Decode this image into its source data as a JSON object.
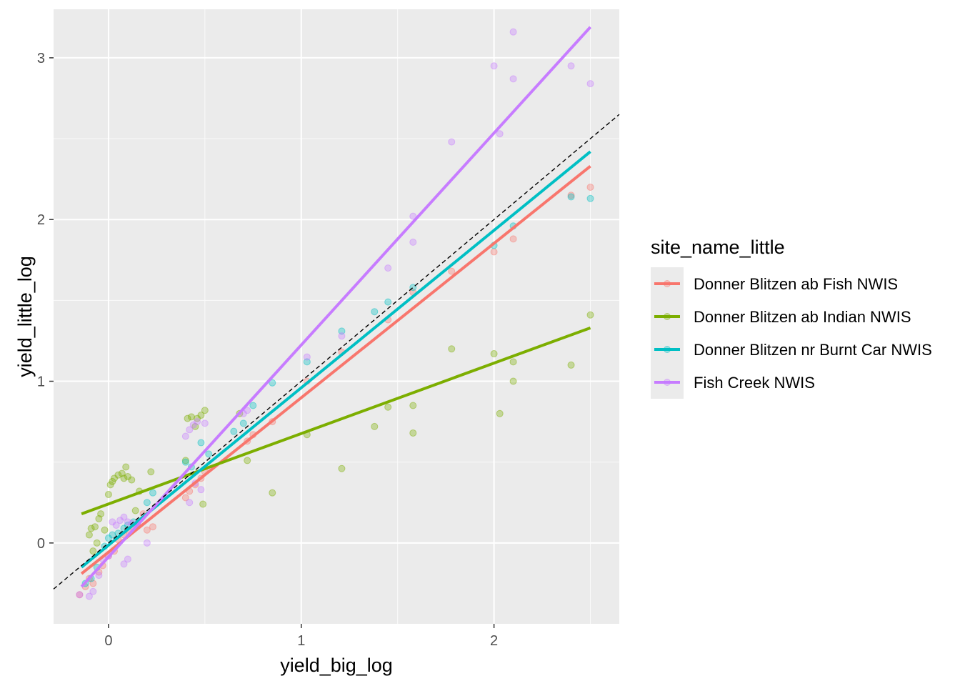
{
  "chart_data": {
    "type": "scatter",
    "xlabel": "yield_big_log",
    "ylabel": "yield_little_log",
    "xlim": [
      -0.285,
      2.65
    ],
    "ylim": [
      -0.5,
      3.3
    ],
    "x_ticks": [
      0,
      1,
      2
    ],
    "y_ticks": [
      0,
      1,
      2,
      3
    ],
    "grid": true,
    "panel_background": "#ebebeb",
    "reference_line": {
      "type": "identity",
      "slope": 1,
      "intercept": 0,
      "style": "dashed",
      "color": "#000000"
    },
    "legend": {
      "title": "site_name_little",
      "placement": "right",
      "entries": [
        {
          "label": "Donner Blitzen ab Fish NWIS",
          "color": "#F8766D"
        },
        {
          "label": "Donner Blitzen ab Indian NWIS",
          "color": "#7CAE00"
        },
        {
          "label": "Donner Blitzen nr Burnt Car NWIS",
          "color": "#00BFC4"
        },
        {
          "label": "Fish Creek NWIS",
          "color": "#C77CFF"
        }
      ]
    },
    "series": [
      {
        "name": "Donner Blitzen ab Fish NWIS",
        "color": "#F8766D",
        "fit": {
          "x": [
            -0.14,
            2.5
          ],
          "y": [
            -0.19,
            2.33
          ]
        },
        "points": [
          [
            -0.15,
            -0.32
          ],
          [
            -0.12,
            -0.27
          ],
          [
            -0.1,
            -0.22
          ],
          [
            -0.08,
            -0.25
          ],
          [
            -0.05,
            -0.18
          ],
          [
            -0.03,
            -0.14
          ],
          [
            0.0,
            -0.08
          ],
          [
            0.03,
            -0.05
          ],
          [
            0.05,
            0.02
          ],
          [
            0.08,
            0.05
          ],
          [
            0.1,
            0.08
          ],
          [
            0.13,
            0.1
          ],
          [
            0.15,
            0.12
          ],
          [
            0.18,
            0.18
          ],
          [
            0.2,
            0.08
          ],
          [
            0.23,
            0.1
          ],
          [
            0.4,
            0.28
          ],
          [
            0.42,
            0.32
          ],
          [
            0.45,
            0.36
          ],
          [
            0.48,
            0.4
          ],
          [
            0.5,
            0.44
          ],
          [
            0.72,
            0.63
          ],
          [
            0.75,
            0.67
          ],
          [
            0.85,
            0.75
          ],
          [
            1.03,
            1.0
          ],
          [
            1.21,
            1.18
          ],
          [
            1.45,
            1.38
          ],
          [
            1.58,
            1.55
          ],
          [
            1.78,
            1.68
          ],
          [
            2.0,
            1.8
          ],
          [
            2.1,
            1.88
          ],
          [
            2.4,
            2.15
          ],
          [
            2.5,
            2.2
          ]
        ]
      },
      {
        "name": "Donner Blitzen ab Indian NWIS",
        "color": "#7CAE00",
        "fit": {
          "x": [
            -0.14,
            2.5
          ],
          "y": [
            0.18,
            1.33
          ]
        },
        "points": [
          [
            -0.1,
            0.05
          ],
          [
            -0.09,
            0.09
          ],
          [
            -0.07,
            0.1
          ],
          [
            -0.05,
            0.15
          ],
          [
            -0.04,
            0.18
          ],
          [
            -0.08,
            -0.05
          ],
          [
            -0.06,
            0.0
          ],
          [
            -0.02,
            0.08
          ],
          [
            0.0,
            0.3
          ],
          [
            0.01,
            0.36
          ],
          [
            0.02,
            0.38
          ],
          [
            0.03,
            0.4
          ],
          [
            0.05,
            0.42
          ],
          [
            0.07,
            0.43
          ],
          [
            0.08,
            0.4
          ],
          [
            0.09,
            0.47
          ],
          [
            0.1,
            0.41
          ],
          [
            0.12,
            0.39
          ],
          [
            0.14,
            0.2
          ],
          [
            0.16,
            0.32
          ],
          [
            0.22,
            0.44
          ],
          [
            0.4,
            0.51
          ],
          [
            0.41,
            0.77
          ],
          [
            0.43,
            0.78
          ],
          [
            0.45,
            0.72
          ],
          [
            0.46,
            0.77
          ],
          [
            0.48,
            0.79
          ],
          [
            0.5,
            0.82
          ],
          [
            0.49,
            0.24
          ],
          [
            0.68,
            0.8
          ],
          [
            0.72,
            0.51
          ],
          [
            0.85,
            0.31
          ],
          [
            1.03,
            0.67
          ],
          [
            1.21,
            0.46
          ],
          [
            1.38,
            0.72
          ],
          [
            1.45,
            0.84
          ],
          [
            1.58,
            0.68
          ],
          [
            1.58,
            0.85
          ],
          [
            1.78,
            1.2
          ],
          [
            2.0,
            1.17
          ],
          [
            2.03,
            0.8
          ],
          [
            2.1,
            1.0
          ],
          [
            2.1,
            1.12
          ],
          [
            2.4,
            1.1
          ],
          [
            2.5,
            1.41
          ]
        ]
      },
      {
        "name": "Donner Blitzen nr Burnt Car NWIS",
        "color": "#00BFC4",
        "fit": {
          "x": [
            -0.14,
            2.5
          ],
          "y": [
            -0.15,
            2.42
          ]
        },
        "points": [
          [
            -0.12,
            -0.25
          ],
          [
            -0.09,
            -0.22
          ],
          [
            -0.06,
            -0.15
          ],
          [
            -0.02,
            -0.02
          ],
          [
            0.0,
            0.03
          ],
          [
            0.02,
            0.05
          ],
          [
            0.05,
            0.06
          ],
          [
            0.08,
            0.09
          ],
          [
            0.1,
            0.11
          ],
          [
            0.13,
            0.13
          ],
          [
            0.2,
            0.25
          ],
          [
            0.23,
            0.31
          ],
          [
            0.4,
            0.5
          ],
          [
            0.43,
            0.47
          ],
          [
            0.48,
            0.62
          ],
          [
            0.52,
            0.55
          ],
          [
            0.65,
            0.69
          ],
          [
            0.7,
            0.74
          ],
          [
            0.75,
            0.85
          ],
          [
            0.85,
            0.99
          ],
          [
            1.03,
            1.12
          ],
          [
            1.21,
            1.31
          ],
          [
            1.38,
            1.43
          ],
          [
            1.45,
            1.49
          ],
          [
            1.58,
            1.58
          ],
          [
            2.0,
            1.84
          ],
          [
            2.1,
            1.96
          ],
          [
            2.4,
            2.14
          ],
          [
            2.5,
            2.13
          ]
        ]
      },
      {
        "name": "Fish Creek NWIS",
        "color": "#C77CFF",
        "fit": {
          "x": [
            -0.14,
            2.5
          ],
          "y": [
            -0.27,
            3.19
          ]
        },
        "points": [
          [
            -0.15,
            -0.32
          ],
          [
            -0.1,
            -0.33
          ],
          [
            -0.08,
            -0.3
          ],
          [
            -0.05,
            -0.2
          ],
          [
            -0.03,
            -0.1
          ],
          [
            0.0,
            -0.08
          ],
          [
            0.02,
            0.13
          ],
          [
            0.04,
            0.11
          ],
          [
            0.06,
            0.14
          ],
          [
            0.08,
            0.16
          ],
          [
            0.1,
            0.13
          ],
          [
            0.12,
            0.12
          ],
          [
            0.15,
            0.12
          ],
          [
            0.08,
            -0.13
          ],
          [
            0.1,
            -0.1
          ],
          [
            0.2,
            0.0
          ],
          [
            0.4,
            0.66
          ],
          [
            0.42,
            0.7
          ],
          [
            0.44,
            0.73
          ],
          [
            0.46,
            0.75
          ],
          [
            0.5,
            0.74
          ],
          [
            0.42,
            0.25
          ],
          [
            0.45,
            0.37
          ],
          [
            0.48,
            0.33
          ],
          [
            0.7,
            0.8
          ],
          [
            0.72,
            0.82
          ],
          [
            1.03,
            1.15
          ],
          [
            1.21,
            1.28
          ],
          [
            1.45,
            1.7
          ],
          [
            1.58,
            2.02
          ],
          [
            1.58,
            1.86
          ],
          [
            1.78,
            2.48
          ],
          [
            2.0,
            2.95
          ],
          [
            2.03,
            2.53
          ],
          [
            2.1,
            2.87
          ],
          [
            2.1,
            3.16
          ],
          [
            2.4,
            2.95
          ],
          [
            2.5,
            2.84
          ]
        ]
      }
    ]
  }
}
